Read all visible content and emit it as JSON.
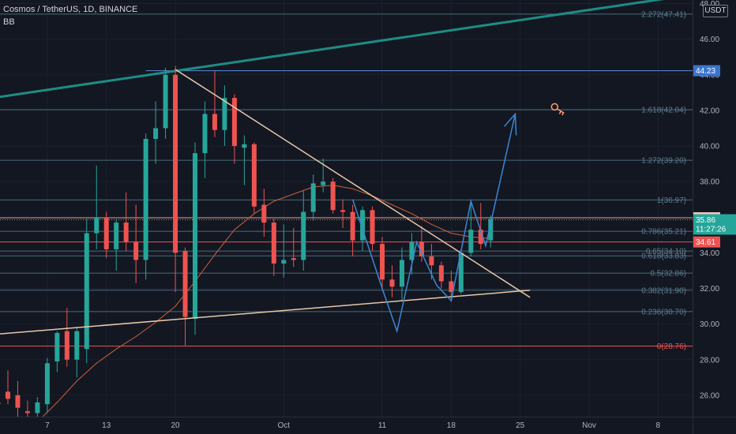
{
  "header": {
    "symbol_line": "Cosmos / TetherUS, 1D, BINANCE",
    "indicator": "BB"
  },
  "price_axis": {
    "unit_label": "USDT"
  },
  "colors": {
    "background": "#131722",
    "up": "#26a69a",
    "down": "#ef5350",
    "bb": "#d0603a",
    "fib_line": "#4a6b7a",
    "fib_text": "#5d7f8f",
    "fib_red": "#ef5350",
    "trendline": "#e8c8a8",
    "channel": "#1e8c84",
    "projection": "#3d86d4",
    "key_icon": "#ff9a70"
  },
  "chart_data": {
    "type": "candlestick",
    "symbol": "Cosmos / TetherUS",
    "timeframe": "1D",
    "exchange": "BINANCE",
    "y_range": [
      24.8,
      48.2
    ],
    "y_ticks": [
      "26.00",
      "28.00",
      "30.00",
      "32.00",
      "34.00",
      "36.00",
      "38.00",
      "40.00",
      "42.00",
      "44.00",
      "46.00",
      "48.00"
    ],
    "y_tick_values": [
      26,
      28,
      30,
      32,
      34,
      36,
      38,
      40,
      42,
      44,
      46,
      48
    ],
    "x_ticks": [
      {
        "label": "7",
        "day": 7
      },
      {
        "label": "13",
        "day": 13
      },
      {
        "label": "20",
        "day": 20
      },
      {
        "label": "Oct",
        "day": 31
      },
      {
        "label": "11",
        "day": 41
      },
      {
        "label": "18",
        "day": 48
      },
      {
        "label": "25",
        "day": 55
      },
      {
        "label": "Nov",
        "day": 62
      },
      {
        "label": "8",
        "day": 69
      }
    ],
    "day_range": [
      2.2,
      72.5
    ],
    "candles": [
      {
        "d": 1,
        "o": 25.8,
        "h": 26.6,
        "l": 24.6,
        "c": 25.2
      },
      {
        "d": 2,
        "o": 25.6,
        "h": 26.6,
        "l": 25.0,
        "c": 25.5
      },
      {
        "d": 3,
        "o": 26.2,
        "h": 27.4,
        "l": 25.5,
        "c": 25.8
      },
      {
        "d": 4,
        "o": 26.0,
        "h": 26.8,
        "l": 24.8,
        "c": 25.3
      },
      {
        "d": 5,
        "o": 25.1,
        "h": 25.7,
        "l": 24.6,
        "c": 25.0
      },
      {
        "d": 6,
        "o": 25.0,
        "h": 25.9,
        "l": 24.5,
        "c": 25.6
      },
      {
        "d": 7,
        "o": 25.5,
        "h": 28.1,
        "l": 25.0,
        "c": 27.8
      },
      {
        "d": 8,
        "o": 27.9,
        "h": 29.6,
        "l": 27.3,
        "c": 29.5
      },
      {
        "d": 9,
        "o": 29.6,
        "h": 30.9,
        "l": 27.6,
        "c": 28.0
      },
      {
        "d": 10,
        "o": 28.0,
        "h": 29.8,
        "l": 27.0,
        "c": 29.6
      },
      {
        "d": 11,
        "o": 28.6,
        "h": 35.9,
        "l": 27.8,
        "c": 35.1
      },
      {
        "d": 12,
        "o": 35.1,
        "h": 38.9,
        "l": 34.2,
        "c": 36.0
      },
      {
        "d": 13,
        "o": 36.0,
        "h": 36.3,
        "l": 33.7,
        "c": 34.2
      },
      {
        "d": 14,
        "o": 34.2,
        "h": 35.9,
        "l": 33.0,
        "c": 35.7
      },
      {
        "d": 15,
        "o": 35.7,
        "h": 37.4,
        "l": 34.1,
        "c": 34.6
      },
      {
        "d": 16,
        "o": 34.6,
        "h": 36.7,
        "l": 32.3,
        "c": 33.6
      },
      {
        "d": 17,
        "o": 33.6,
        "h": 40.7,
        "l": 32.5,
        "c": 40.4
      },
      {
        "d": 18,
        "o": 40.4,
        "h": 42.5,
        "l": 39.0,
        "c": 41.0
      },
      {
        "d": 19,
        "o": 41.0,
        "h": 44.4,
        "l": 40.4,
        "c": 44.0
      },
      {
        "d": 20,
        "o": 44.0,
        "h": 44.5,
        "l": 31.8,
        "c": 34.0
      },
      {
        "d": 21,
        "o": 34.1,
        "h": 34.3,
        "l": 28.8,
        "c": 30.4
      },
      {
        "d": 22,
        "o": 30.3,
        "h": 40.2,
        "l": 29.4,
        "c": 39.6
      },
      {
        "d": 23,
        "o": 39.6,
        "h": 42.5,
        "l": 38.2,
        "c": 41.8
      },
      {
        "d": 24,
        "o": 41.8,
        "h": 44.2,
        "l": 40.5,
        "c": 40.9
      },
      {
        "d": 25,
        "o": 40.9,
        "h": 43.4,
        "l": 40.0,
        "c": 42.7
      },
      {
        "d": 26,
        "o": 42.7,
        "h": 42.9,
        "l": 39.0,
        "c": 40.0
      },
      {
        "d": 27,
        "o": 39.9,
        "h": 40.6,
        "l": 37.8,
        "c": 40.1
      },
      {
        "d": 28,
        "o": 40.1,
        "h": 40.2,
        "l": 36.2,
        "c": 36.6
      },
      {
        "d": 29,
        "o": 36.7,
        "h": 37.6,
        "l": 34.9,
        "c": 35.7
      },
      {
        "d": 30,
        "o": 35.7,
        "h": 35.9,
        "l": 32.7,
        "c": 33.4
      },
      {
        "d": 31,
        "o": 33.4,
        "h": 35.6,
        "l": 32.6,
        "c": 33.6
      },
      {
        "d": 32,
        "o": 33.7,
        "h": 35.4,
        "l": 33.2,
        "c": 33.6
      },
      {
        "d": 33,
        "o": 33.6,
        "h": 37.5,
        "l": 33.0,
        "c": 36.3
      },
      {
        "d": 34,
        "o": 36.3,
        "h": 38.4,
        "l": 35.8,
        "c": 37.9
      },
      {
        "d": 35,
        "o": 37.8,
        "h": 39.3,
        "l": 37.4,
        "c": 38.0
      },
      {
        "d": 36,
        "o": 38.0,
        "h": 38.2,
        "l": 36.2,
        "c": 36.4
      },
      {
        "d": 37,
        "o": 36.4,
        "h": 37.0,
        "l": 35.4,
        "c": 36.3
      },
      {
        "d": 38,
        "o": 36.3,
        "h": 36.7,
        "l": 33.8,
        "c": 34.7
      },
      {
        "d": 39,
        "o": 34.7,
        "h": 36.6,
        "l": 34.1,
        "c": 36.4
      },
      {
        "d": 40,
        "o": 36.4,
        "h": 36.6,
        "l": 34.1,
        "c": 34.5
      },
      {
        "d": 41,
        "o": 34.5,
        "h": 34.9,
        "l": 31.9,
        "c": 32.5
      },
      {
        "d": 42,
        "o": 32.5,
        "h": 33.3,
        "l": 31.5,
        "c": 32.1
      },
      {
        "d": 43,
        "o": 32.1,
        "h": 34.3,
        "l": 31.3,
        "c": 33.6
      },
      {
        "d": 44,
        "o": 33.6,
        "h": 35.1,
        "l": 32.8,
        "c": 34.6
      },
      {
        "d": 45,
        "o": 34.6,
        "h": 35.5,
        "l": 33.5,
        "c": 33.8
      },
      {
        "d": 46,
        "o": 33.8,
        "h": 34.5,
        "l": 32.5,
        "c": 33.3
      },
      {
        "d": 47,
        "o": 33.3,
        "h": 33.5,
        "l": 32.0,
        "c": 32.4
      },
      {
        "d": 48,
        "o": 32.4,
        "h": 33.0,
        "l": 31.4,
        "c": 31.8
      },
      {
        "d": 49,
        "o": 31.8,
        "h": 34.2,
        "l": 31.7,
        "c": 34.0
      },
      {
        "d": 50,
        "o": 34.0,
        "h": 36.9,
        "l": 33.8,
        "c": 35.3
      },
      {
        "d": 51,
        "o": 35.3,
        "h": 36.8,
        "l": 34.2,
        "c": 34.5
      },
      {
        "d": 52,
        "o": 34.7,
        "h": 36.1,
        "l": 34.3,
        "c": 35.9
      }
    ],
    "bollinger_basis": [
      [
        6,
        24.5
      ],
      [
        8,
        25.6
      ],
      [
        10,
        26.8
      ],
      [
        12,
        27.8
      ],
      [
        14,
        28.6
      ],
      [
        16,
        29.3
      ],
      [
        18,
        30.1
      ],
      [
        20,
        31.0
      ],
      [
        22,
        32.4
      ],
      [
        24,
        33.9
      ],
      [
        26,
        35.3
      ],
      [
        28,
        36.2
      ],
      [
        30,
        36.9
      ],
      [
        32,
        37.3
      ],
      [
        34,
        37.7
      ],
      [
        36,
        37.8
      ],
      [
        38,
        37.6
      ],
      [
        40,
        37.2
      ],
      [
        42,
        36.7
      ],
      [
        44,
        36.2
      ],
      [
        46,
        35.6
      ],
      [
        48,
        35.1
      ],
      [
        50,
        34.9
      ],
      [
        52,
        34.8
      ]
    ],
    "horizontal_levels": [
      {
        "price": 44.23,
        "label": "44.23"
      },
      {
        "price": 35.97,
        "label": "35.97"
      },
      {
        "price": 34.61,
        "label": "34.61"
      }
    ],
    "fib_levels": [
      {
        "ratio": "2.272",
        "price": 47.41,
        "label": "2.272(47.41)"
      },
      {
        "ratio": "1.618",
        "price": 42.04,
        "label": "1.618(42.04)"
      },
      {
        "ratio": "1.272",
        "price": 39.2,
        "label": "1.272(39.20)"
      },
      {
        "ratio": "1",
        "price": 36.97,
        "label": "1(36.97)"
      },
      {
        "ratio": "0.786",
        "price": 35.21,
        "label": "0.786(35.21)"
      },
      {
        "ratio": "0.65",
        "price": 34.1,
        "label": "0.65(34.10)"
      },
      {
        "ratio": "0.618",
        "price": 33.83,
        "label": "0.618(33.83)"
      },
      {
        "ratio": "0.5",
        "price": 32.86,
        "label": "0.5(32.86)"
      },
      {
        "ratio": "0.382",
        "price": 31.9,
        "label": "0.382(31.90)"
      },
      {
        "ratio": "0.236",
        "price": 30.7,
        "label": "0.236(30.70)"
      },
      {
        "ratio": "0",
        "price": 28.76,
        "label": "0(28.76)"
      }
    ],
    "last_price": {
      "price": 35.86,
      "label": "35.86",
      "countdown": "11:27:26"
    },
    "trendlines": {
      "descending": [
        [
          20,
          44.3
        ],
        [
          56,
          31.5
        ]
      ],
      "ascending": [
        [
          -1,
          29.3
        ],
        [
          56,
          31.9
        ]
      ],
      "channel": [
        [
          -1,
          42.5
        ],
        [
          72.5,
          48.5
        ]
      ]
    },
    "projection_path": [
      [
        38,
        37.0
      ],
      [
        41,
        32.0
      ],
      [
        42.5,
        29.6
      ],
      [
        44.5,
        34.6
      ],
      [
        46.5,
        32.2
      ],
      [
        48,
        31.3
      ],
      [
        50,
        36.9
      ],
      [
        51.5,
        34.4
      ],
      [
        54.5,
        41.8
      ]
    ],
    "projection_arrowhead": [
      [
        53.4,
        41.1
      ],
      [
        54.5,
        41.8
      ],
      [
        54.6,
        40.6
      ]
    ]
  }
}
